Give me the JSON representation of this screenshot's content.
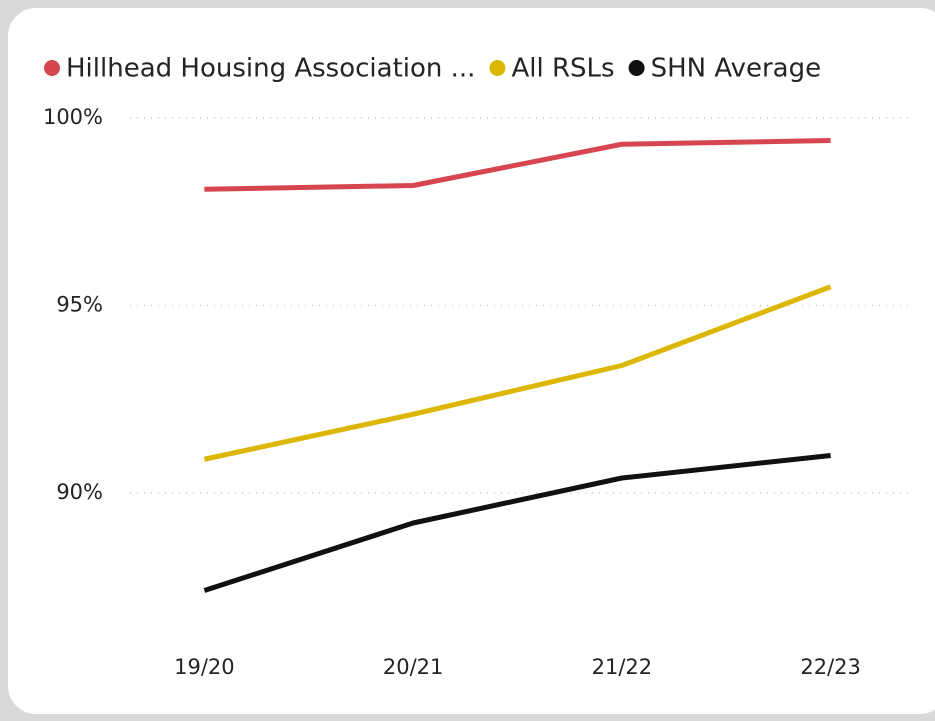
{
  "chart_data": {
    "type": "line",
    "categories": [
      "19/20",
      "20/21",
      "21/22",
      "22/23"
    ],
    "series": [
      {
        "name": "Hillhead Housing Association ...",
        "color": "#d64550",
        "values": [
          98.1,
          98.2,
          99.3,
          99.4
        ]
      },
      {
        "name": "All RSLs",
        "color": "#dcb600",
        "values": [
          90.9,
          92.1,
          93.4,
          95.5
        ]
      },
      {
        "name": "SHN Average",
        "color": "#111111",
        "values": [
          87.4,
          89.2,
          90.4,
          91.0
        ]
      }
    ],
    "ylim": [
      86,
      100
    ],
    "yticks": [
      {
        "value": 90,
        "label": "90%"
      },
      {
        "value": 95,
        "label": "95%"
      },
      {
        "value": 100,
        "label": "100%"
      }
    ],
    "grid": true,
    "legend": "top"
  }
}
